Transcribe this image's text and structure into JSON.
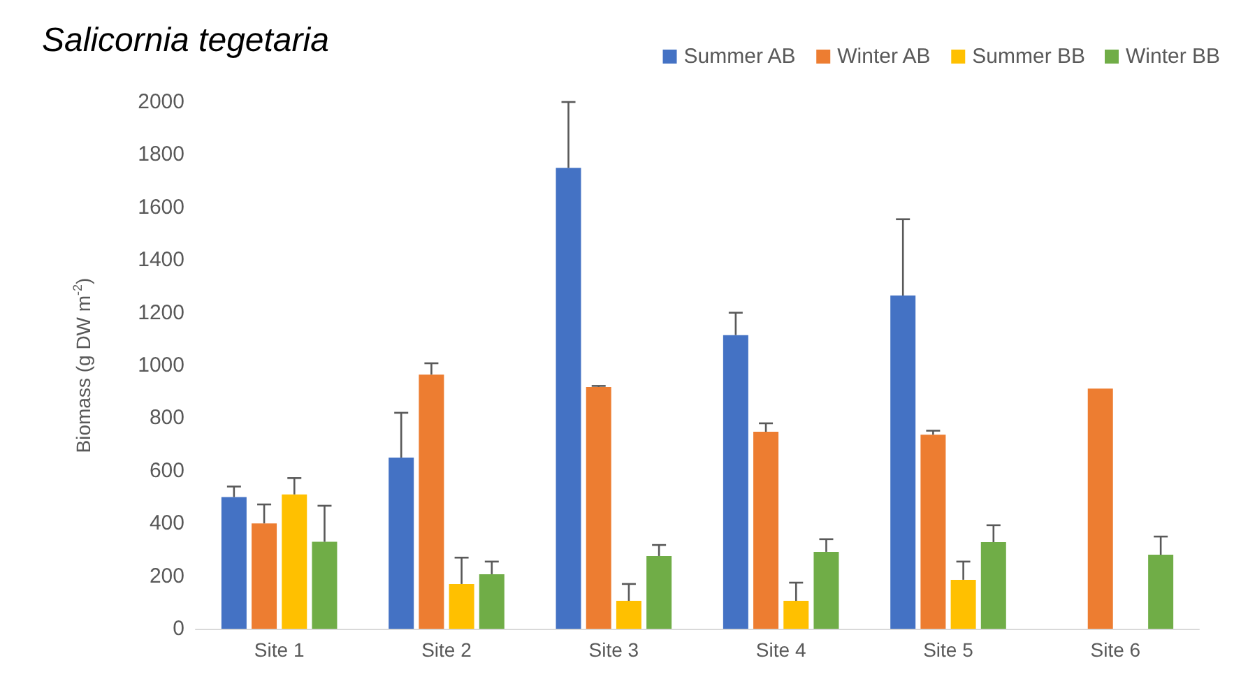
{
  "chart_data": {
    "type": "bar",
    "title": "Salicornia tegetaria",
    "ylabel": "Biomass (g DW m$^{-2}$)",
    "categories": [
      "Site 1",
      "Site 2",
      "Site 3",
      "Site 4",
      "Site 5",
      "Site 6"
    ],
    "series": [
      {
        "name": "Summer AB",
        "color": "#4472c4",
        "values": [
          500,
          650,
          1750,
          1115,
          1265,
          null
        ],
        "errors": [
          [
            500,
            540
          ],
          [
            650,
            820
          ],
          [
            1750,
            2000
          ],
          [
            1115,
            1200
          ],
          [
            1265,
            1555
          ],
          null
        ]
      },
      {
        "name": "Winter AB",
        "color": "#ed7d31",
        "values": [
          400,
          965,
          918,
          748,
          737,
          912
        ],
        "errors": [
          [
            400,
            472
          ],
          [
            965,
            1008
          ],
          [
            918,
            922
          ],
          [
            748,
            780
          ],
          [
            737,
            752
          ],
          null
        ]
      },
      {
        "name": "Summer BB",
        "color": "#ffc000",
        "values": [
          510,
          170,
          106,
          106,
          186,
          null
        ],
        "errors": [
          [
            510,
            572
          ],
          [
            170,
            270
          ],
          [
            106,
            170
          ],
          [
            106,
            175
          ],
          [
            186,
            255
          ],
          null
        ]
      },
      {
        "name": "Winter BB",
        "color": "#70ad47",
        "values": [
          330,
          207,
          276,
          292,
          329,
          281
        ],
        "errors": [
          [
            330,
            467
          ],
          [
            207,
            255
          ],
          [
            276,
            318
          ],
          [
            292,
            340
          ],
          [
            329,
            393
          ],
          [
            281,
            350
          ]
        ]
      }
    ],
    "ylim": [
      0,
      2000
    ],
    "yticks": [
      0,
      200,
      400,
      600,
      800,
      1000,
      1200,
      1400,
      1600,
      1800,
      2000
    ],
    "grid": false,
    "legend": "top right"
  }
}
